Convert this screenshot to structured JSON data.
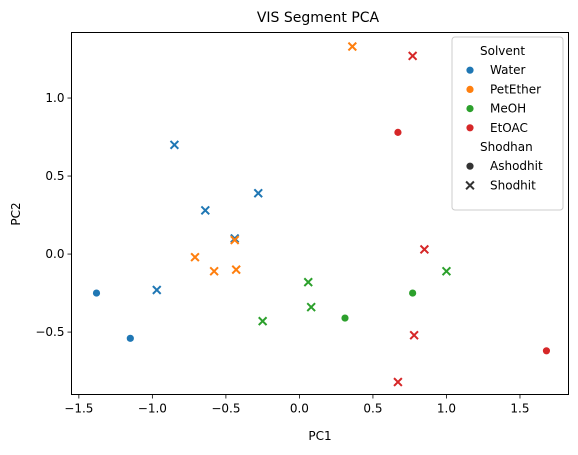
{
  "chart_data": {
    "type": "scatter",
    "title": "VIS Segment PCA",
    "xlabel": "PC1",
    "ylabel": "PC2",
    "xlim": [
      -1.55,
      1.83
    ],
    "ylim": [
      -0.9,
      1.42
    ],
    "xticks": [
      -1.5,
      -1.0,
      -0.5,
      0.0,
      0.5,
      1.0,
      1.5
    ],
    "xtick_labels": [
      "−1.5",
      "−1.0",
      "−0.5",
      "0.0",
      "0.5",
      "1.0",
      "1.5"
    ],
    "yticks": [
      -0.5,
      0.0,
      0.5,
      1.0
    ],
    "ytick_labels": [
      "−0.5",
      "0.0",
      "0.5",
      "1.0"
    ],
    "grid": false,
    "legend_placement": "top-right",
    "legend": {
      "hue_title": "Solvent",
      "style_title": "Shodhan",
      "hue_entries": [
        {
          "name": "Water",
          "color": "#1f77b4"
        },
        {
          "name": "PetEther",
          "color": "#ff7f0e"
        },
        {
          "name": "MeOH",
          "color": "#2ca02c"
        },
        {
          "name": "EtOAC",
          "color": "#d62728"
        }
      ],
      "style_entries": [
        {
          "name": "Ashodhit",
          "marker": "circle"
        },
        {
          "name": "Shodhit",
          "marker": "x"
        }
      ]
    },
    "series": [
      {
        "solvent": "Water",
        "shodhan": "Ashodhit",
        "points": [
          [
            -1.38,
            -0.25
          ],
          [
            -1.15,
            -0.54
          ]
        ]
      },
      {
        "solvent": "Water",
        "shodhan": "Shodhit",
        "points": [
          [
            -0.85,
            0.7
          ],
          [
            -0.97,
            -0.23
          ],
          [
            -0.64,
            0.28
          ],
          [
            -0.28,
            0.39
          ],
          [
            -0.44,
            0.1
          ]
        ]
      },
      {
        "solvent": "PetEther",
        "shodhan": "Shodhit",
        "points": [
          [
            0.36,
            1.33
          ],
          [
            -0.44,
            0.09
          ],
          [
            -0.71,
            -0.02
          ],
          [
            -0.58,
            -0.11
          ],
          [
            -0.43,
            -0.1
          ]
        ]
      },
      {
        "solvent": "MeOH",
        "shodhan": "Ashodhit",
        "points": [
          [
            0.31,
            -0.41
          ],
          [
            0.77,
            -0.25
          ]
        ]
      },
      {
        "solvent": "MeOH",
        "shodhan": "Shodhit",
        "points": [
          [
            0.06,
            -0.18
          ],
          [
            0.08,
            -0.34
          ],
          [
            -0.25,
            -0.43
          ],
          [
            1.0,
            -0.11
          ]
        ]
      },
      {
        "solvent": "EtOAC",
        "shodhan": "Ashodhit",
        "points": [
          [
            0.67,
            0.78
          ],
          [
            1.68,
            -0.62
          ]
        ]
      },
      {
        "solvent": "EtOAC",
        "shodhan": "Shodhit",
        "points": [
          [
            0.77,
            1.27
          ],
          [
            0.85,
            0.03
          ],
          [
            0.78,
            -0.52
          ],
          [
            0.67,
            -0.82
          ]
        ]
      }
    ]
  }
}
